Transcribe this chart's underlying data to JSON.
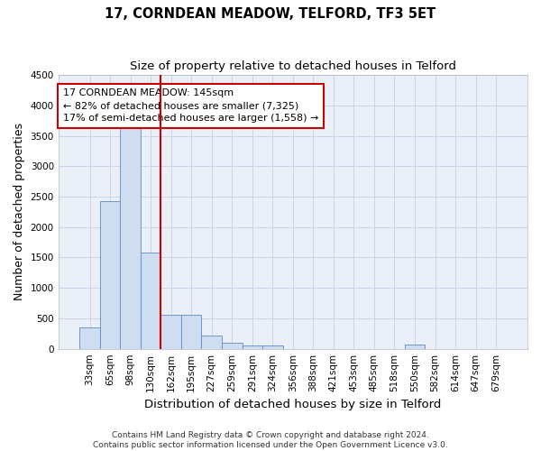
{
  "title": "17, CORNDEAN MEADOW, TELFORD, TF3 5ET",
  "subtitle": "Size of property relative to detached houses in Telford",
  "xlabel": "Distribution of detached houses by size in Telford",
  "ylabel": "Number of detached properties",
  "categories": [
    "33sqm",
    "65sqm",
    "98sqm",
    "130sqm",
    "162sqm",
    "195sqm",
    "227sqm",
    "259sqm",
    "291sqm",
    "324sqm",
    "356sqm",
    "388sqm",
    "421sqm",
    "453sqm",
    "485sqm",
    "518sqm",
    "550sqm",
    "582sqm",
    "614sqm",
    "647sqm",
    "679sqm"
  ],
  "values": [
    350,
    2420,
    3620,
    1580,
    555,
    555,
    215,
    100,
    58,
    58,
    0,
    0,
    0,
    0,
    0,
    0,
    65,
    0,
    0,
    0,
    0
  ],
  "bar_color": "#cfddf0",
  "bar_edge_color": "#5b8ac5",
  "vline_x_index": 3,
  "vline_color": "#cc0000",
  "annotation_text": "17 CORNDEAN MEADOW: 145sqm\n← 82% of detached houses are smaller (7,325)\n17% of semi-detached houses are larger (1,558) →",
  "annotation_box_color": "#cc0000",
  "ylim": [
    0,
    4500
  ],
  "yticks": [
    0,
    500,
    1000,
    1500,
    2000,
    2500,
    3000,
    3500,
    4000,
    4500
  ],
  "footnote": "Contains HM Land Registry data © Crown copyright and database right 2024.\nContains public sector information licensed under the Open Government Licence v3.0.",
  "background_color": "#ffffff",
  "grid_color": "#c8d4e8",
  "title_fontsize": 10.5,
  "subtitle_fontsize": 9.5,
  "axis_label_fontsize": 9,
  "tick_fontsize": 7.5,
  "annotation_fontsize": 8,
  "footnote_fontsize": 6.5
}
